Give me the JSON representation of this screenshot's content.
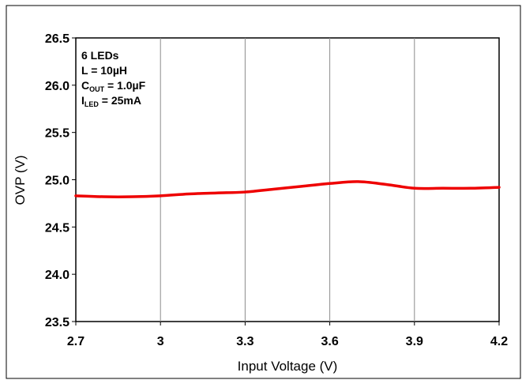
{
  "chart_data": {
    "type": "line",
    "xlabel": "Input Voltage (V)",
    "ylabel": "OVP (V)",
    "xlim": [
      2.7,
      4.2
    ],
    "ylim": [
      23.5,
      26.5
    ],
    "xticks": [
      "2.7",
      "3",
      "3.3",
      "3.6",
      "3.9",
      "4.2"
    ],
    "yticks": [
      "26.5",
      "26.0",
      "25.5",
      "25.0",
      "24.5",
      "24.0",
      "23.5"
    ],
    "vertical_grid": true,
    "horizontal_grid": false,
    "line_color": "#ee0000",
    "series": [
      {
        "x": [
          2.7,
          2.8,
          2.9,
          3.0,
          3.1,
          3.2,
          3.3,
          3.4,
          3.5,
          3.6,
          3.7,
          3.8,
          3.9,
          4.0,
          4.1,
          4.2
        ],
        "values": [
          24.83,
          24.82,
          24.82,
          24.83,
          24.85,
          24.86,
          24.87,
          24.9,
          24.93,
          24.96,
          24.98,
          24.95,
          24.91,
          24.91,
          24.91,
          24.92
        ]
      }
    ],
    "annotations": [
      {
        "main": "6 LEDs",
        "sub": "",
        "tail": ""
      },
      {
        "main": "L = 10µH",
        "sub": "",
        "tail": ""
      },
      {
        "main": "C",
        "sub": "OUT",
        "tail": " = 1.0µF"
      },
      {
        "main": "I",
        "sub": "LED",
        "tail": " = 25mA"
      }
    ]
  }
}
